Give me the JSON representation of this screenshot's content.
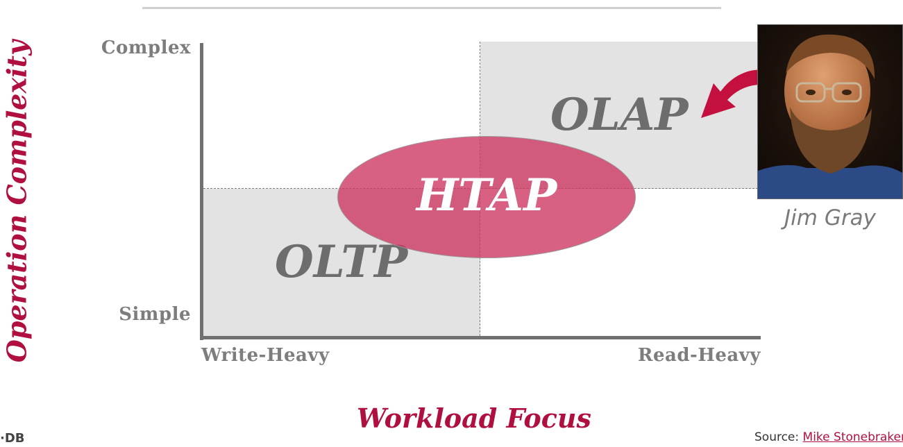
{
  "diagram": {
    "y_axis_title": "Operation Complexity",
    "x_axis_title": "Workload Focus",
    "y_ticks": {
      "top": "Complex",
      "bottom": "Simple"
    },
    "x_ticks": {
      "left": "Write-Heavy",
      "right": "Read-Heavy"
    },
    "regions": {
      "oltp": "OLTP",
      "olap": "OLAP",
      "htap": "HTAP"
    }
  },
  "photo": {
    "caption": "Jim Gray",
    "icon": "portrait-photo"
  },
  "footer": {
    "logo_text": "·DB",
    "source_prefix": "Source: ",
    "source_link": "Mike Stonebraker"
  },
  "colors": {
    "accent": "#b0103f",
    "htap_fill": "#cc3360",
    "quadrant_fill": "#e3e3e3",
    "axis": "#707070",
    "arrow": "#c4103f"
  }
}
